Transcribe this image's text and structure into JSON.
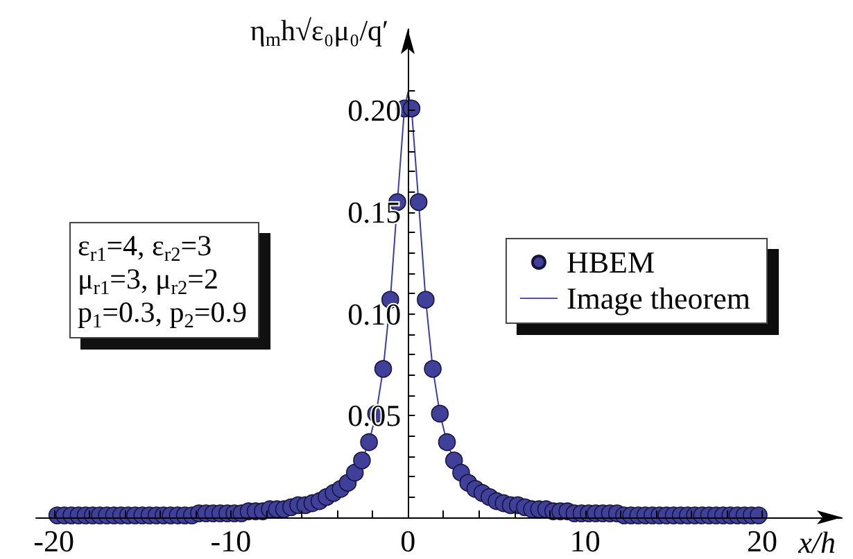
{
  "chart_data": {
    "type": "scatter",
    "xlabel": "x/h",
    "ylabel": "η$_{m}$h√ε₀μ₀/q′",
    "annotations": [
      "ε$_{r1}$=4, ε$_{r2}$=3",
      "μ$_{r1}$=3, μ$_{r2}$=2",
      "p$_{1}$=0.3, p$_{2}$=0.9"
    ],
    "xlim": [
      -21,
      24.5
    ],
    "xticks": [
      -20,
      {
        "value": -18,
        "label": null
      },
      {
        "value": -16,
        "label": null
      },
      {
        "value": -14,
        "label": null
      },
      {
        "value": -12,
        "label": null
      },
      -10,
      {
        "value": -8,
        "label": null
      },
      {
        "value": -6,
        "label": null
      },
      {
        "value": -4,
        "label": null
      },
      {
        "value": -2,
        "label": null
      },
      0,
      {
        "value": 2,
        "label": null
      },
      {
        "value": 4,
        "label": null
      },
      {
        "value": 6,
        "label": null
      },
      {
        "value": 8,
        "label": null
      },
      10,
      {
        "value": 12,
        "label": null
      },
      {
        "value": 14,
        "label": null
      },
      {
        "value": 16,
        "label": null
      },
      {
        "value": 18,
        "label": null
      },
      20
    ],
    "ylim": [
      0,
      0.24
    ],
    "yticks": [
      {
        "value": 0.01,
        "label": null
      },
      {
        "value": 0.02,
        "label": null
      },
      {
        "value": 0.03,
        "label": null
      },
      {
        "value": 0.04,
        "label": null
      },
      0.05,
      {
        "value": 0.06,
        "label": null
      },
      {
        "value": 0.07,
        "label": null
      },
      {
        "value": 0.08,
        "label": null
      },
      {
        "value": 0.09,
        "label": null
      },
      {
        "value": 0.1,
        "label": "0.10"
      },
      {
        "value": 0.11,
        "label": null
      },
      {
        "value": 0.12,
        "label": null
      },
      {
        "value": 0.13,
        "label": null
      },
      {
        "value": 0.14,
        "label": null
      },
      0.15,
      {
        "value": 0.16,
        "label": null
      },
      {
        "value": 0.17,
        "label": null
      },
      {
        "value": 0.18,
        "label": null
      },
      {
        "value": 0.19,
        "label": null
      },
      {
        "value": 0.2,
        "label": "0.20"
      },
      {
        "value": 0.21,
        "label": null
      }
    ],
    "grid": false,
    "legend": "right",
    "series": [
      {
        "name": "HBEM",
        "color": "#40409a",
        "marker": "circle",
        "x": [
          -19.8,
          -19.4,
          -19,
          -18.6,
          -18.2,
          -17.8,
          -17.4,
          -17,
          -16.6,
          -16.2,
          -15.8,
          -15.4,
          -15,
          -14.6,
          -14.2,
          -13.8,
          -13.4,
          -13,
          -12.6,
          -12.2,
          -11.8,
          -11.4,
          -11,
          -10.6,
          -10.2,
          -9.8,
          -9.4,
          -9,
          -8.6,
          -8.2,
          -7.8,
          -7.4,
          -7,
          -6.6,
          -6.2,
          -5.8,
          -5.4,
          -5,
          -4.6,
          -4.2,
          -3.8,
          -3.4,
          -3,
          -2.6,
          -2.2,
          -1.8,
          -1.4,
          -1,
          -0.6,
          -0.2,
          0.2,
          0.6,
          1,
          1.4,
          1.8,
          2.2,
          2.6,
          3,
          3.4,
          3.8,
          4.2,
          4.6,
          5,
          5.4,
          5.8,
          6.2,
          6.6,
          7,
          7.4,
          7.8,
          8.2,
          8.6,
          9,
          9.4,
          9.8,
          10.2,
          10.6,
          11,
          11.4,
          11.8,
          12.2,
          12.6,
          13,
          13.4,
          13.8,
          14.2,
          14.6,
          15,
          15.4,
          15.8,
          16.2,
          16.6,
          17,
          17.4,
          17.8,
          18.2,
          18.6,
          19,
          19.4,
          19.8
        ],
        "values": [
          0.001,
          0.001,
          0.001,
          0.001,
          0.001,
          0.001,
          0.001,
          0.001,
          0.001,
          0.001,
          0.001,
          0.001,
          0.001,
          0.001,
          0.001,
          0.001,
          0.001,
          0.001,
          0.001,
          0.001,
          0.002,
          0.002,
          0.002,
          0.002,
          0.002,
          0.002,
          0.002,
          0.003,
          0.003,
          0.003,
          0.004,
          0.004,
          0.004,
          0.005,
          0.006,
          0.006,
          0.007,
          0.008,
          0.01,
          0.012,
          0.014,
          0.017,
          0.022,
          0.028,
          0.037,
          0.051,
          0.073,
          0.107,
          0.155,
          0.201,
          0.201,
          0.155,
          0.107,
          0.073,
          0.051,
          0.037,
          0.028,
          0.022,
          0.017,
          0.014,
          0.012,
          0.01,
          0.008,
          0.007,
          0.006,
          0.006,
          0.005,
          0.004,
          0.004,
          0.004,
          0.003,
          0.003,
          0.003,
          0.002,
          0.002,
          0.002,
          0.002,
          0.002,
          0.002,
          0.002,
          0.001,
          0.001,
          0.001,
          0.001,
          0.001,
          0.001,
          0.001,
          0.001,
          0.001,
          0.001,
          0.001,
          0.001,
          0.001,
          0.001,
          0.001,
          0.001,
          0.001,
          0.001,
          0.001,
          0.001
        ]
      },
      {
        "name": "Image theorem",
        "type": "line",
        "color": "#3c3ca8",
        "marker": "none",
        "line_style": "solid",
        "x": [
          -19.8,
          -19.4,
          -19,
          -18.6,
          -18.2,
          -17.8,
          -17.4,
          -17,
          -16.6,
          -16.2,
          -15.8,
          -15.4,
          -15,
          -14.6,
          -14.2,
          -13.8,
          -13.4,
          -13,
          -12.6,
          -12.2,
          -11.8,
          -11.4,
          -11,
          -10.6,
          -10.2,
          -9.8,
          -9.4,
          -9,
          -8.6,
          -8.2,
          -7.8,
          -7.4,
          -7,
          -6.6,
          -6.2,
          -5.8,
          -5.4,
          -5,
          -4.6,
          -4.2,
          -3.8,
          -3.4,
          -3,
          -2.6,
          -2.2,
          -1.8,
          -1.4,
          -1,
          -0.6,
          -0.2,
          0,
          0.2,
          0.6,
          1,
          1.4,
          1.8,
          2.2,
          2.6,
          3,
          3.4,
          3.8,
          4.2,
          4.6,
          5,
          5.4,
          5.8,
          6.2,
          6.6,
          7,
          7.4,
          7.8,
          8.2,
          8.6,
          9,
          9.4,
          9.8,
          10.2,
          10.6,
          11,
          11.4,
          11.8,
          12.2,
          12.6,
          13,
          13.4,
          13.8,
          14.2,
          14.6,
          15,
          15.4,
          15.8,
          16.2,
          16.6,
          17,
          17.4,
          17.8,
          18.2,
          18.6,
          19,
          19.4,
          19.8
        ],
        "values": [
          0.001,
          0.001,
          0.001,
          0.001,
          0.001,
          0.001,
          0.001,
          0.001,
          0.001,
          0.001,
          0.001,
          0.001,
          0.001,
          0.001,
          0.001,
          0.001,
          0.001,
          0.001,
          0.001,
          0.001,
          0.002,
          0.002,
          0.002,
          0.002,
          0.002,
          0.002,
          0.002,
          0.003,
          0.003,
          0.003,
          0.004,
          0.004,
          0.004,
          0.005,
          0.006,
          0.006,
          0.007,
          0.008,
          0.01,
          0.012,
          0.014,
          0.017,
          0.022,
          0.028,
          0.037,
          0.051,
          0.073,
          0.107,
          0.155,
          0.201,
          0.209,
          0.201,
          0.155,
          0.107,
          0.073,
          0.051,
          0.037,
          0.028,
          0.022,
          0.017,
          0.014,
          0.012,
          0.01,
          0.008,
          0.007,
          0.006,
          0.006,
          0.005,
          0.004,
          0.004,
          0.004,
          0.003,
          0.003,
          0.003,
          0.002,
          0.002,
          0.002,
          0.002,
          0.002,
          0.002,
          0.002,
          0.001,
          0.001,
          0.001,
          0.001,
          0.001,
          0.001,
          0.001,
          0.001,
          0.001,
          0.001,
          0.001,
          0.001,
          0.001,
          0.001,
          0.001,
          0.001,
          0.001,
          0.001,
          0.001,
          0.001
        ]
      }
    ]
  }
}
